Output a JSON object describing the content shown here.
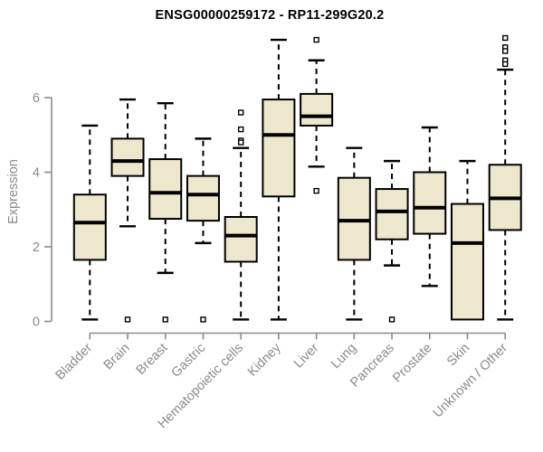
{
  "title": "ENSG00000259172 - RP11-299G20.2",
  "chart_data": {
    "type": "boxplot",
    "title": "ENSG00000259172 - RP11-299G20.2",
    "xlabel": "",
    "ylabel": "Expression",
    "ylim": [
      0,
      7.8
    ],
    "yticks": [
      0,
      2,
      4,
      6
    ],
    "grid": false,
    "legend": "none",
    "categories": [
      "Bladder",
      "Brain",
      "Breast",
      "Gastric",
      "Hematopoietic cells",
      "Kidney",
      "Liver",
      "Lung",
      "Pancreas",
      "Prostate",
      "Skin",
      "Unknown / Other"
    ],
    "series": [
      {
        "name": "Bladder",
        "whisker_low": 0.05,
        "q1": 1.65,
        "median": 2.65,
        "q3": 3.4,
        "whisker_high": 5.25,
        "outliers": []
      },
      {
        "name": "Brain",
        "whisker_low": 2.55,
        "q1": 3.9,
        "median": 4.3,
        "q3": 4.9,
        "whisker_high": 5.95,
        "outliers": [
          0.05
        ]
      },
      {
        "name": "Breast",
        "whisker_low": 1.3,
        "q1": 2.75,
        "median": 3.45,
        "q3": 4.35,
        "whisker_high": 5.85,
        "outliers": [
          0.05
        ]
      },
      {
        "name": "Gastric",
        "whisker_low": 2.1,
        "q1": 2.7,
        "median": 3.4,
        "q3": 3.9,
        "whisker_high": 4.9,
        "outliers": [
          0.05
        ]
      },
      {
        "name": "Hematopoietic cells",
        "whisker_low": 0.05,
        "q1": 1.6,
        "median": 2.3,
        "q3": 2.8,
        "whisker_high": 4.65,
        "outliers": [
          5.6,
          5.15,
          4.85,
          4.8
        ]
      },
      {
        "name": "Kidney",
        "whisker_low": 0.05,
        "q1": 3.35,
        "median": 5.0,
        "q3": 5.95,
        "whisker_high": 7.55,
        "outliers": []
      },
      {
        "name": "Liver",
        "whisker_low": 4.15,
        "q1": 5.25,
        "median": 5.5,
        "q3": 6.1,
        "whisker_high": 7.0,
        "outliers": [
          7.55,
          3.5
        ]
      },
      {
        "name": "Lung",
        "whisker_low": 0.05,
        "q1": 1.65,
        "median": 2.7,
        "q3": 3.85,
        "whisker_high": 4.65,
        "outliers": []
      },
      {
        "name": "Pancreas",
        "whisker_low": 1.5,
        "q1": 2.2,
        "median": 2.95,
        "q3": 3.55,
        "whisker_high": 4.3,
        "outliers": [
          0.05
        ]
      },
      {
        "name": "Prostate",
        "whisker_low": 0.95,
        "q1": 2.35,
        "median": 3.05,
        "q3": 4.0,
        "whisker_high": 5.2,
        "outliers": []
      },
      {
        "name": "Skin",
        "whisker_low": 0.05,
        "q1": 0.05,
        "median": 2.1,
        "q3": 3.15,
        "whisker_high": 4.3,
        "outliers": []
      },
      {
        "name": "Unknown / Other",
        "whisker_low": 0.05,
        "q1": 2.45,
        "median": 3.3,
        "q3": 4.2,
        "whisker_high": 6.75,
        "outliers": [
          7.6,
          7.35,
          7.25,
          7.0,
          6.9
        ]
      }
    ],
    "colors": {
      "box_fill": "#EDE8CD",
      "box_border": "#000000",
      "median": "#000000",
      "whisker": "#000000",
      "outlier_fill": "#FFFFFF",
      "outlier_border": "#000000",
      "axis": "#8A8A8A",
      "tick_label": "#8A8A8A",
      "title": "#000000",
      "background": "#FFFFFF"
    }
  }
}
